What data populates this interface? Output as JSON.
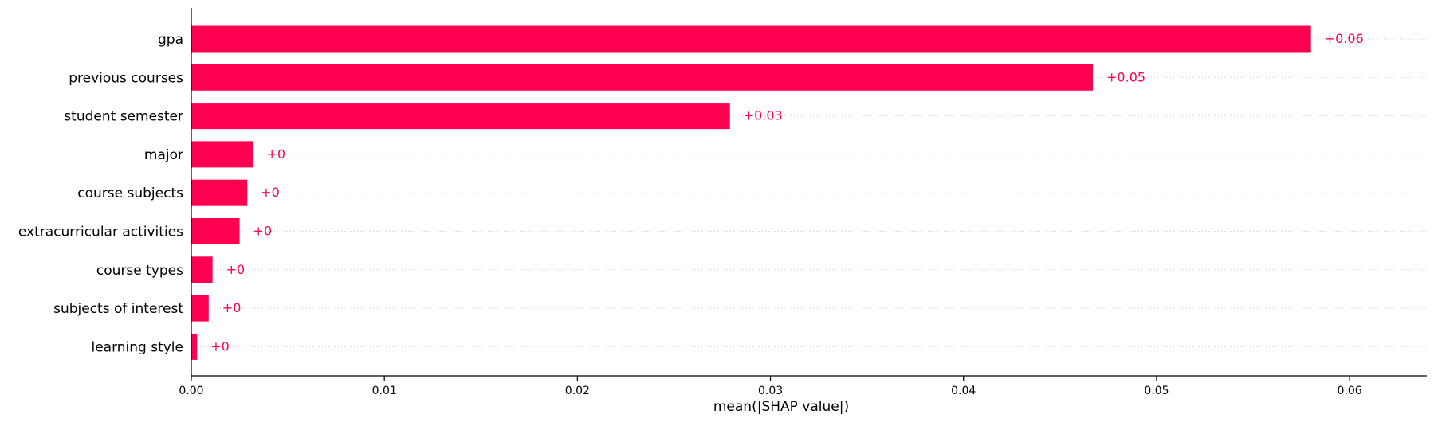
{
  "chart_data": {
    "type": "bar",
    "orientation": "horizontal",
    "categories": [
      "gpa",
      "previous courses",
      "student semester",
      "major",
      "course subjects",
      "extracurricular activities",
      "course types",
      "subjects of interest",
      "learning style"
    ],
    "values": [
      0.058,
      0.0467,
      0.0279,
      0.0032,
      0.0029,
      0.0025,
      0.0011,
      0.0009,
      0.0003
    ],
    "value_labels": [
      "+0.06",
      "+0.05",
      "+0.03",
      "+0",
      "+0",
      "+0",
      "+0",
      "+0",
      "+0"
    ],
    "xlabel": "mean(|SHAP value|)",
    "xlim": [
      0.0,
      0.064
    ],
    "x_ticks": [
      0.0,
      0.01,
      0.02,
      0.03,
      0.04,
      0.05,
      0.06
    ],
    "x_tick_labels": [
      "0.00",
      "0.01",
      "0.02",
      "0.03",
      "0.04",
      "0.05",
      "0.06"
    ],
    "grid": "horizontal-dotted",
    "bar_color": "#ff0051",
    "gridline_color": "#cccccc"
  }
}
